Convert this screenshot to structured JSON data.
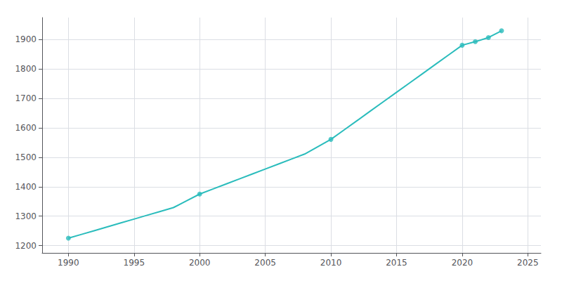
{
  "chart_data": {
    "type": "line",
    "x": [
      1990,
      1991,
      1992,
      1993,
      1994,
      1995,
      1996,
      1997,
      1998,
      1999,
      2000,
      2001,
      2002,
      2003,
      2004,
      2005,
      2006,
      2007,
      2008,
      2009,
      2010,
      2011,
      2012,
      2013,
      2014,
      2015,
      2016,
      2017,
      2018,
      2019,
      2020,
      2021,
      2022,
      2023
    ],
    "series": [
      {
        "color": "#2abcbc",
        "line_style": "solid",
        "values": [
          1225,
          1238,
          1251,
          1264,
          1277,
          1290,
          1303,
          1316,
          1329,
          1352,
          1375,
          1392,
          1409,
          1426,
          1443,
          1460,
          1477,
          1494,
          1511,
          1536,
          1561,
          1593,
          1625,
          1657,
          1689,
          1721,
          1753,
          1785,
          1817,
          1849,
          1881,
          1893,
          1907,
          1930
        ]
      },
      {
        "type": "scatter",
        "color": "#2abcbc",
        "marker": "circle",
        "x": [
          1990,
          2000,
          2010,
          2020,
          2021,
          2022,
          2023
        ],
        "values": [
          1225,
          1375,
          1561,
          1881,
          1893,
          1907,
          1930
        ]
      }
    ],
    "xlim": [
      1988,
      2026
    ],
    "ylim": [
      1175,
      1975
    ],
    "xticks": [
      1990,
      1995,
      2000,
      2005,
      2010,
      2015,
      2020,
      2025
    ],
    "yticks": [
      1200,
      1300,
      1400,
      1500,
      1600,
      1700,
      1800,
      1900
    ],
    "grid": true
  }
}
